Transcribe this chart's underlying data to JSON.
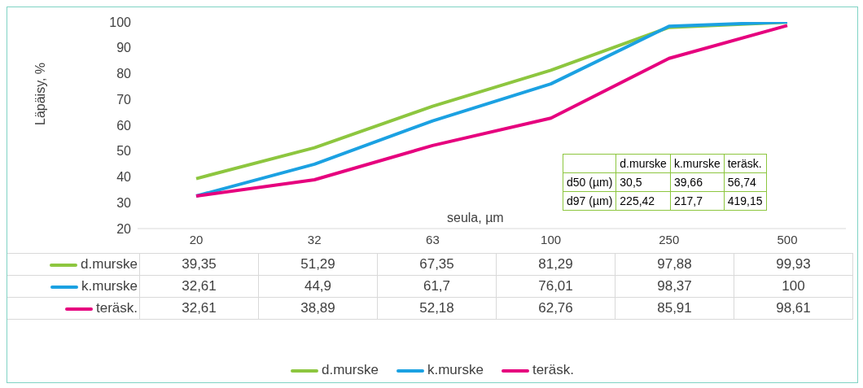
{
  "chart_data": {
    "type": "line",
    "ylabel": "Läpäisy, %",
    "xlabel": "seula, µm",
    "categories": [
      "20",
      "32",
      "63",
      "100",
      "250",
      "500"
    ],
    "series": [
      {
        "name": "d.murske",
        "color": "#8dc63f",
        "values": [
          39.35,
          51.29,
          67.35,
          81.29,
          97.88,
          99.93
        ],
        "value_labels": [
          "39,35",
          "51,29",
          "67,35",
          "81,29",
          "97,88",
          "99,93"
        ]
      },
      {
        "name": "k.murske",
        "color": "#1ba1e2",
        "values": [
          32.61,
          44.9,
          61.7,
          76.01,
          98.37,
          100
        ],
        "value_labels": [
          "32,61",
          "44,9",
          "61,7",
          "76,01",
          "98,37",
          "100"
        ]
      },
      {
        "name": "teräsk.",
        "color": "#e6007e",
        "values": [
          32.61,
          38.89,
          52.18,
          62.76,
          85.91,
          98.61
        ],
        "value_labels": [
          "32,61",
          "38,89",
          "52,18",
          "62,76",
          "85,91",
          "98,61"
        ]
      }
    ],
    "ylim": [
      20,
      100
    ],
    "yticks": [
      20,
      30,
      40,
      50,
      60,
      70,
      80,
      90,
      100
    ],
    "grid": false,
    "marker": "none",
    "legend": "bottom",
    "annotations": [
      "d50 (µm)",
      "30,5",
      "39,66",
      "56,74",
      "d97 (µm)",
      "225,42",
      "217,7",
      "419,15"
    ]
  }
}
